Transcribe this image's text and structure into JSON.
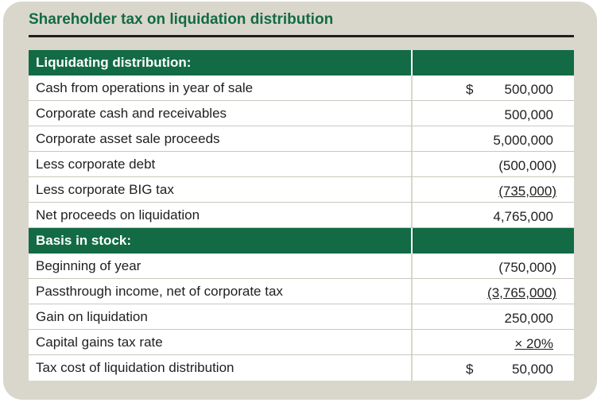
{
  "title": "Shareholder tax on liquidation distribution",
  "sections": [
    {
      "header": "Liquidating distribution:",
      "rows": [
        {
          "label": "Cash from operations in year of sale",
          "currency": "$",
          "value": "500,000"
        },
        {
          "label": "Corporate cash and receivables",
          "currency": "",
          "value": "500,000"
        },
        {
          "label": "Corporate asset sale proceeds",
          "currency": "",
          "value": "5,000,000"
        },
        {
          "label": "Less corporate debt",
          "currency": "",
          "value": "(500,000)"
        },
        {
          "label": "Less corporate BIG tax",
          "currency": "",
          "value": "(735,000)"
        },
        {
          "label": "Net proceeds on liquidation",
          "currency": "",
          "value": "4,765,000"
        }
      ]
    },
    {
      "header": "Basis in stock:",
      "rows": [
        {
          "label": "Beginning of year",
          "currency": "",
          "value": "(750,000)"
        },
        {
          "label": "Passthrough income, net of corporate tax",
          "currency": "",
          "value": "(3,765,000)"
        },
        {
          "label": "Gain on liquidation",
          "currency": "",
          "value": "250,000"
        },
        {
          "label": "Capital gains tax rate",
          "currency": "",
          "value": "× 20%"
        },
        {
          "label": "Tax cost of liquidation distribution",
          "currency": "$",
          "value": "50,000"
        }
      ]
    }
  ]
}
